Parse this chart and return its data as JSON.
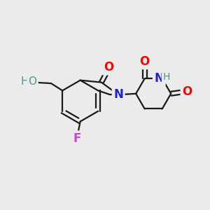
{
  "bg_color": "#ebebeb",
  "bond_color": "#1a1a1a",
  "bond_width": 1.6,
  "figsize": [
    3.0,
    3.0
  ],
  "dpi": 100,
  "colors": {
    "O": "#ff0000",
    "N": "#2222cc",
    "F": "#cc44cc",
    "HO": "#4a9a8a",
    "H": "#4a9a8a"
  }
}
